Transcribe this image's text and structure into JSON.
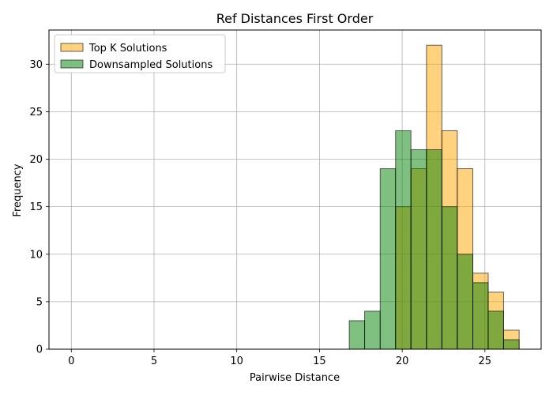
{
  "chart_data": {
    "type": "histogram",
    "title": "Ref Distances First Order",
    "xlabel": "Pairwise Distance",
    "ylabel": "Frequency",
    "xlim": [
      -1.35,
      28.4
    ],
    "ylim": [
      0,
      33.6
    ],
    "xticks": [
      0,
      5,
      10,
      15,
      20,
      25
    ],
    "yticks": [
      0,
      5,
      10,
      15,
      20,
      25,
      30
    ],
    "grid": true,
    "legend_position": "top-left",
    "series": [
      {
        "name": "Top K Solutions",
        "color": "#ffa500",
        "alpha": 0.5,
        "bins": [
          {
            "x0": 0.0,
            "x1": 0.93,
            "count": 0
          },
          {
            "x0": 19.6,
            "x1": 20.53,
            "count": 15
          },
          {
            "x0": 20.53,
            "x1": 21.47,
            "count": 19
          },
          {
            "x0": 21.47,
            "x1": 22.4,
            "count": 32
          },
          {
            "x0": 22.4,
            "x1": 23.33,
            "count": 23
          },
          {
            "x0": 23.33,
            "x1": 24.27,
            "count": 19
          },
          {
            "x0": 24.27,
            "x1": 25.2,
            "count": 8
          },
          {
            "x0": 25.2,
            "x1": 26.13,
            "count": 6
          },
          {
            "x0": 26.13,
            "x1": 27.07,
            "count": 2
          }
        ]
      },
      {
        "name": "Downsampled Solutions",
        "color": "#008000",
        "alpha": 0.5,
        "bins": [
          {
            "x0": 0.0,
            "x1": 0.93,
            "count": 0
          },
          {
            "x0": 16.8,
            "x1": 17.73,
            "count": 3
          },
          {
            "x0": 17.73,
            "x1": 18.67,
            "count": 4
          },
          {
            "x0": 18.67,
            "x1": 19.6,
            "count": 19
          },
          {
            "x0": 19.6,
            "x1": 20.53,
            "count": 23
          },
          {
            "x0": 20.53,
            "x1": 21.47,
            "count": 21
          },
          {
            "x0": 21.47,
            "x1": 22.4,
            "count": 21
          },
          {
            "x0": 22.4,
            "x1": 23.33,
            "count": 15
          },
          {
            "x0": 23.33,
            "x1": 24.27,
            "count": 10
          },
          {
            "x0": 24.27,
            "x1": 25.2,
            "count": 7
          },
          {
            "x0": 25.2,
            "x1": 26.13,
            "count": 4
          },
          {
            "x0": 26.13,
            "x1": 27.07,
            "count": 1
          }
        ]
      }
    ]
  }
}
